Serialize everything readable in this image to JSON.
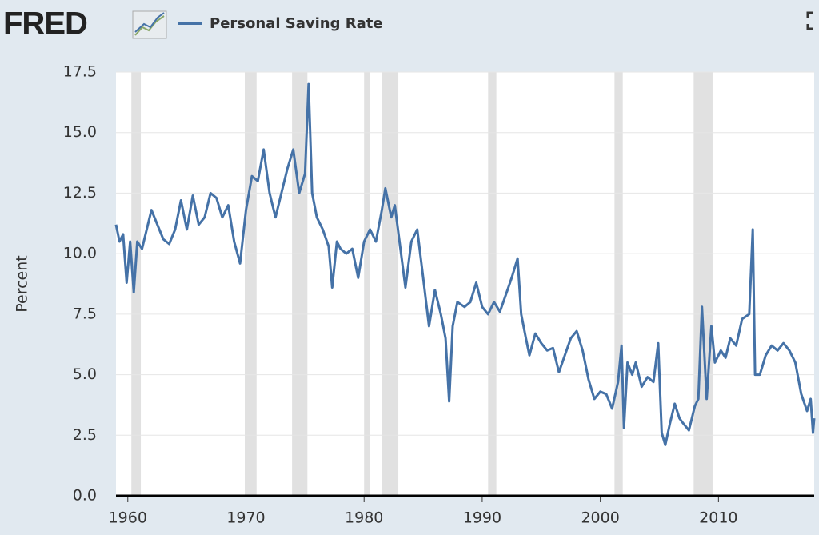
{
  "logo": "FRED",
  "chart_data": {
    "type": "line",
    "y_label": "Percent",
    "xlim": [
      1959,
      2018.1
    ],
    "ylim": [
      0,
      17.5
    ],
    "xticks": [
      1960,
      1970,
      1980,
      1990,
      2000,
      2010
    ],
    "yticks": [
      {
        "value": 0,
        "label": "0.0"
      },
      2.5,
      {
        "value": 5,
        "label": "5.0"
      },
      7.5,
      {
        "value": 10,
        "label": "10.0"
      },
      12.5,
      {
        "value": 15,
        "label": "15.0"
      },
      17.5
    ],
    "grid": true,
    "recessions": [
      [
        1960.3,
        1961.1
      ],
      [
        1969.9,
        1970.9
      ],
      [
        1973.9,
        1975.2
      ],
      [
        1980.0,
        1980.5
      ],
      [
        1981.5,
        1982.9
      ],
      [
        1990.5,
        1991.2
      ],
      [
        2001.2,
        2001.9
      ],
      [
        2007.9,
        2009.5
      ]
    ],
    "x": [
      1959.0,
      1959.3,
      1959.6,
      1959.9,
      1960.2,
      1960.5,
      1960.8,
      1961.2,
      1961.6,
      1962.0,
      1962.5,
      1963.0,
      1963.5,
      1964.0,
      1964.5,
      1965.0,
      1965.5,
      1966.0,
      1966.5,
      1967.0,
      1967.5,
      1968.0,
      1968.5,
      1969.0,
      1969.5,
      1970.0,
      1970.5,
      1971.0,
      1971.5,
      1972.0,
      1972.5,
      1973.0,
      1973.5,
      1974.0,
      1974.5,
      1975.0,
      1975.3,
      1975.6,
      1976.0,
      1976.5,
      1977.0,
      1977.3,
      1977.7,
      1978.0,
      1978.5,
      1979.0,
      1979.5,
      1980.0,
      1980.5,
      1981.0,
      1981.5,
      1981.8,
      1982.3,
      1982.6,
      1983.0,
      1983.5,
      1984.0,
      1984.5,
      1985.0,
      1985.5,
      1986.0,
      1986.5,
      1986.9,
      1987.2,
      1987.5,
      1987.9,
      1988.5,
      1989.0,
      1989.5,
      1990.0,
      1990.5,
      1991.0,
      1991.5,
      1992.0,
      1992.5,
      1993.0,
      1993.3,
      1993.7,
      1994.0,
      1994.5,
      1995.0,
      1995.5,
      1996.0,
      1996.5,
      1997.0,
      1997.5,
      1998.0,
      1998.5,
      1999.0,
      1999.5,
      2000.0,
      2000.5,
      2001.0,
      2001.5,
      2001.8,
      2002.0,
      2002.3,
      2002.7,
      2003.0,
      2003.5,
      2004.0,
      2004.5,
      2004.9,
      2005.2,
      2005.5,
      2005.9,
      2006.3,
      2006.7,
      2007.0,
      2007.5,
      2008.0,
      2008.3,
      2008.6,
      2009.0,
      2009.4,
      2009.7,
      2010.2,
      2010.6,
      2011.0,
      2011.5,
      2012.0,
      2012.6,
      2012.9,
      2013.1,
      2013.5,
      2014.0,
      2014.5,
      2015.0,
      2015.5,
      2016.0,
      2016.5,
      2017.0,
      2017.5,
      2017.8,
      2018.0,
      2018.1
    ],
    "series": [
      {
        "name": "Personal Saving Rate",
        "color": "#4572a7",
        "values": [
          11.2,
          10.5,
          10.8,
          8.8,
          10.5,
          8.4,
          10.5,
          10.2,
          11.0,
          11.8,
          11.2,
          10.6,
          10.4,
          11.0,
          12.2,
          11.0,
          12.4,
          11.2,
          11.5,
          12.5,
          12.3,
          11.5,
          12.0,
          10.5,
          9.6,
          11.8,
          13.2,
          13.0,
          14.3,
          12.5,
          11.5,
          12.5,
          13.5,
          14.3,
          12.5,
          13.3,
          17.0,
          12.5,
          11.5,
          11.0,
          10.3,
          8.6,
          10.5,
          10.2,
          10.0,
          10.2,
          9.0,
          10.5,
          11.0,
          10.5,
          11.8,
          12.7,
          11.5,
          12.0,
          10.5,
          8.6,
          10.5,
          11.0,
          9.0,
          7.0,
          8.5,
          7.5,
          6.5,
          3.9,
          7.0,
          8.0,
          7.8,
          8.0,
          8.8,
          7.8,
          7.5,
          8.0,
          7.6,
          8.3,
          9.0,
          9.8,
          7.5,
          6.5,
          5.8,
          6.7,
          6.3,
          6.0,
          6.1,
          5.1,
          5.8,
          6.5,
          6.8,
          6.0,
          4.8,
          4.0,
          4.3,
          4.2,
          3.6,
          4.7,
          6.2,
          2.8,
          5.5,
          5.0,
          5.5,
          4.5,
          4.9,
          4.7,
          6.3,
          2.6,
          2.1,
          3.0,
          3.8,
          3.2,
          3.0,
          2.7,
          3.7,
          4.0,
          7.8,
          4.0,
          7.0,
          5.5,
          6.0,
          5.7,
          6.5,
          6.2,
          7.3,
          7.5,
          11.0,
          5.0,
          5.0,
          5.8,
          6.2,
          6.0,
          6.3,
          6.0,
          5.5,
          4.2,
          3.5,
          4.0,
          2.6,
          3.2
        ]
      }
    ]
  }
}
